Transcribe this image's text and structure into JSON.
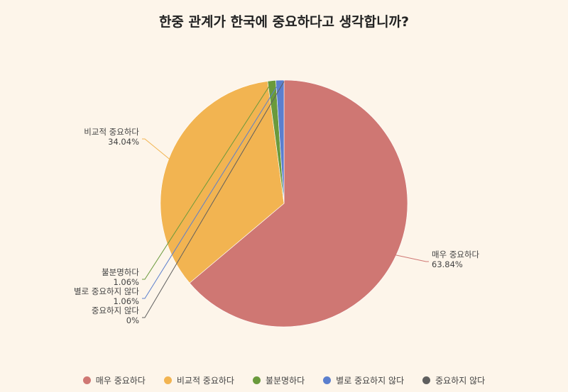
{
  "chart_data": {
    "type": "pie",
    "title": "한중 관계가 한국에 중요하다고 생각합니까?",
    "legend_position": "bottom",
    "slices": [
      {
        "label": "매우 중요하다",
        "value": 63.84,
        "value_label": "63.84%",
        "color": "#cf7773"
      },
      {
        "label": "비교적 중요하다",
        "value": 34.04,
        "value_label": "34.04%",
        "color": "#f2b451"
      },
      {
        "label": "불분명하다",
        "value": 1.06,
        "value_label": "1.06%",
        "color": "#6a9a3c"
      },
      {
        "label": "별로 중요하지 않다",
        "value": 1.06,
        "value_label": "1.06%",
        "color": "#5b7fce"
      },
      {
        "label": "중요하지 않다",
        "value": 0,
        "value_label": "0%",
        "color": "#5f5f5f"
      }
    ]
  }
}
